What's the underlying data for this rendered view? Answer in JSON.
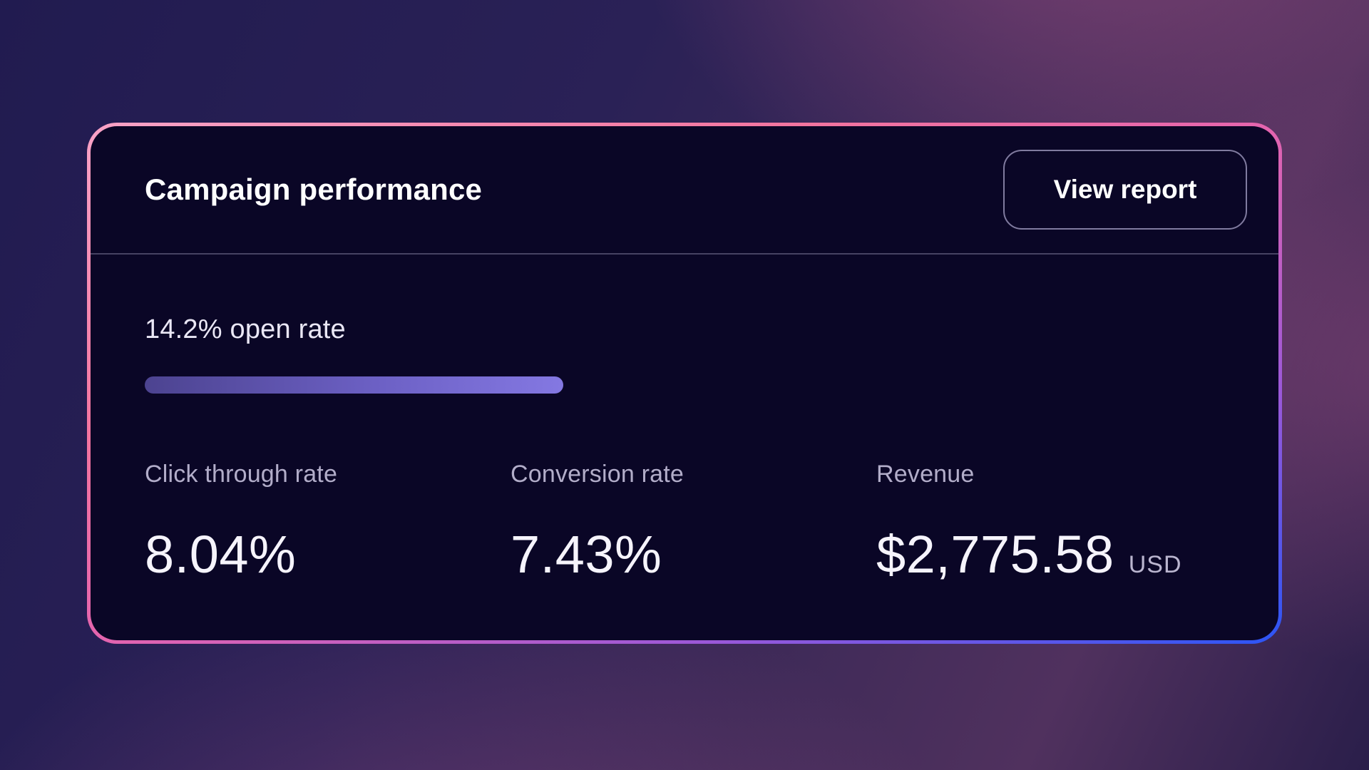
{
  "card": {
    "title": "Campaign performance",
    "view_report_label": "View report",
    "open_rate": {
      "text": "14.2% open rate",
      "value_percent": 14.2,
      "progress_fill_percent": 38
    },
    "stats": [
      {
        "label": "Click through rate",
        "value": "8.04%",
        "suffix": ""
      },
      {
        "label": "Conversion rate",
        "value": "7.43%",
        "suffix": ""
      },
      {
        "label": "Revenue",
        "value": "$2,775.58",
        "suffix": "USD"
      }
    ]
  },
  "colors": {
    "card_background": "#0a0626",
    "card_border_gradient": [
      "#f9a3c7",
      "#e464ae",
      "#2b55f5"
    ],
    "progress_gradient": [
      "#4c4390",
      "#8478e2"
    ],
    "divider": "#474263",
    "title_text": "#ffffff",
    "label_text": "#b2adc9",
    "value_text": "#f6f4fc",
    "background_indigo": "#211b50",
    "background_plum": "#50315e"
  }
}
